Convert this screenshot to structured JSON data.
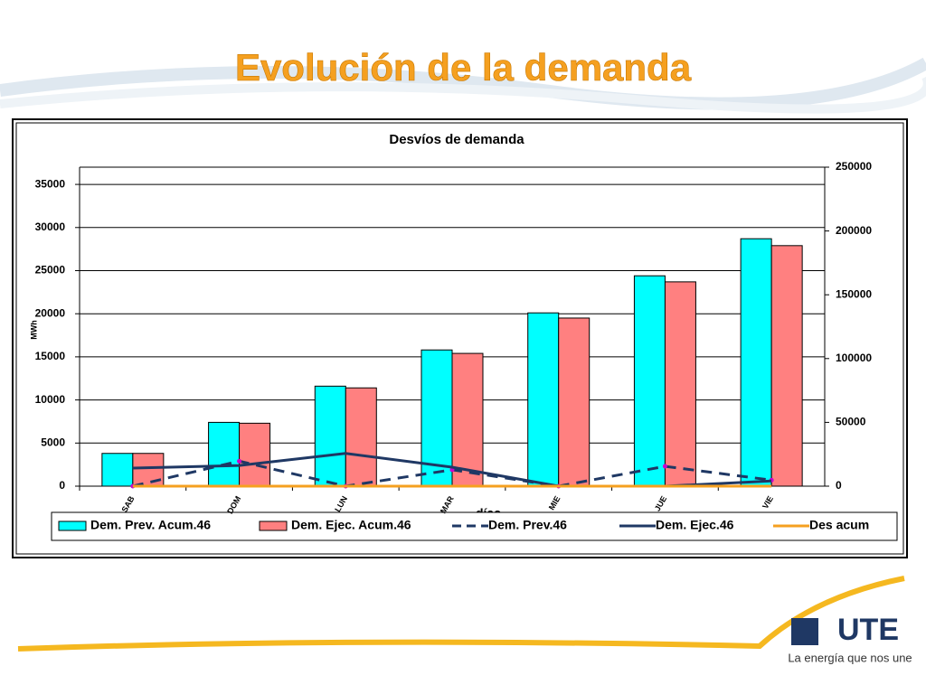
{
  "slide_title": "Evolución de la demanda",
  "footer": {
    "logo": "UTE",
    "tagline": "La energía que nos une"
  },
  "chart_data": {
    "type": "bar",
    "title": "Desvíos de demanda",
    "y_label": "MWh",
    "x_label": "días",
    "categories": [
      "SAB",
      "DOM",
      "LUN",
      "MAR",
      "MIE",
      "JUE",
      "VIE"
    ],
    "ylim": [
      0,
      37000
    ],
    "yticks": [
      0,
      5000,
      10000,
      15000,
      20000,
      25000,
      30000,
      35000
    ],
    "y2lim": [
      0,
      250000
    ],
    "y2ticks": [
      0,
      50000,
      100000,
      150000,
      200000,
      250000
    ],
    "grid": true,
    "series": [
      {
        "name": "Dem. Prev. Acum.46",
        "type": "bar",
        "color": "#00ffff",
        "values": [
          3800,
          7400,
          11600,
          15800,
          20100,
          24400,
          28700
        ]
      },
      {
        "name": "Dem. Ejec. Acum.46",
        "type": "bar",
        "color": "#ff8080",
        "values": [
          3800,
          7300,
          11400,
          15400,
          19500,
          23700,
          27900
        ]
      },
      {
        "name": "Dem. Prev.46",
        "type": "dashed-line",
        "color": "#1f3864",
        "marker_color": "#cc00cc",
        "values": [
          0,
          2900,
          0,
          1900,
          0,
          2300,
          700
        ]
      },
      {
        "name": "Dem. Ejec.46",
        "type": "line",
        "color": "#1f3864",
        "values": [
          2100,
          2400,
          3800,
          2200,
          0,
          0,
          600
        ]
      },
      {
        "name": "Des acum",
        "type": "line",
        "axis": "y2",
        "color": "#f5a020",
        "values": [
          0,
          0,
          0,
          0,
          0,
          0,
          0
        ]
      }
    ]
  }
}
